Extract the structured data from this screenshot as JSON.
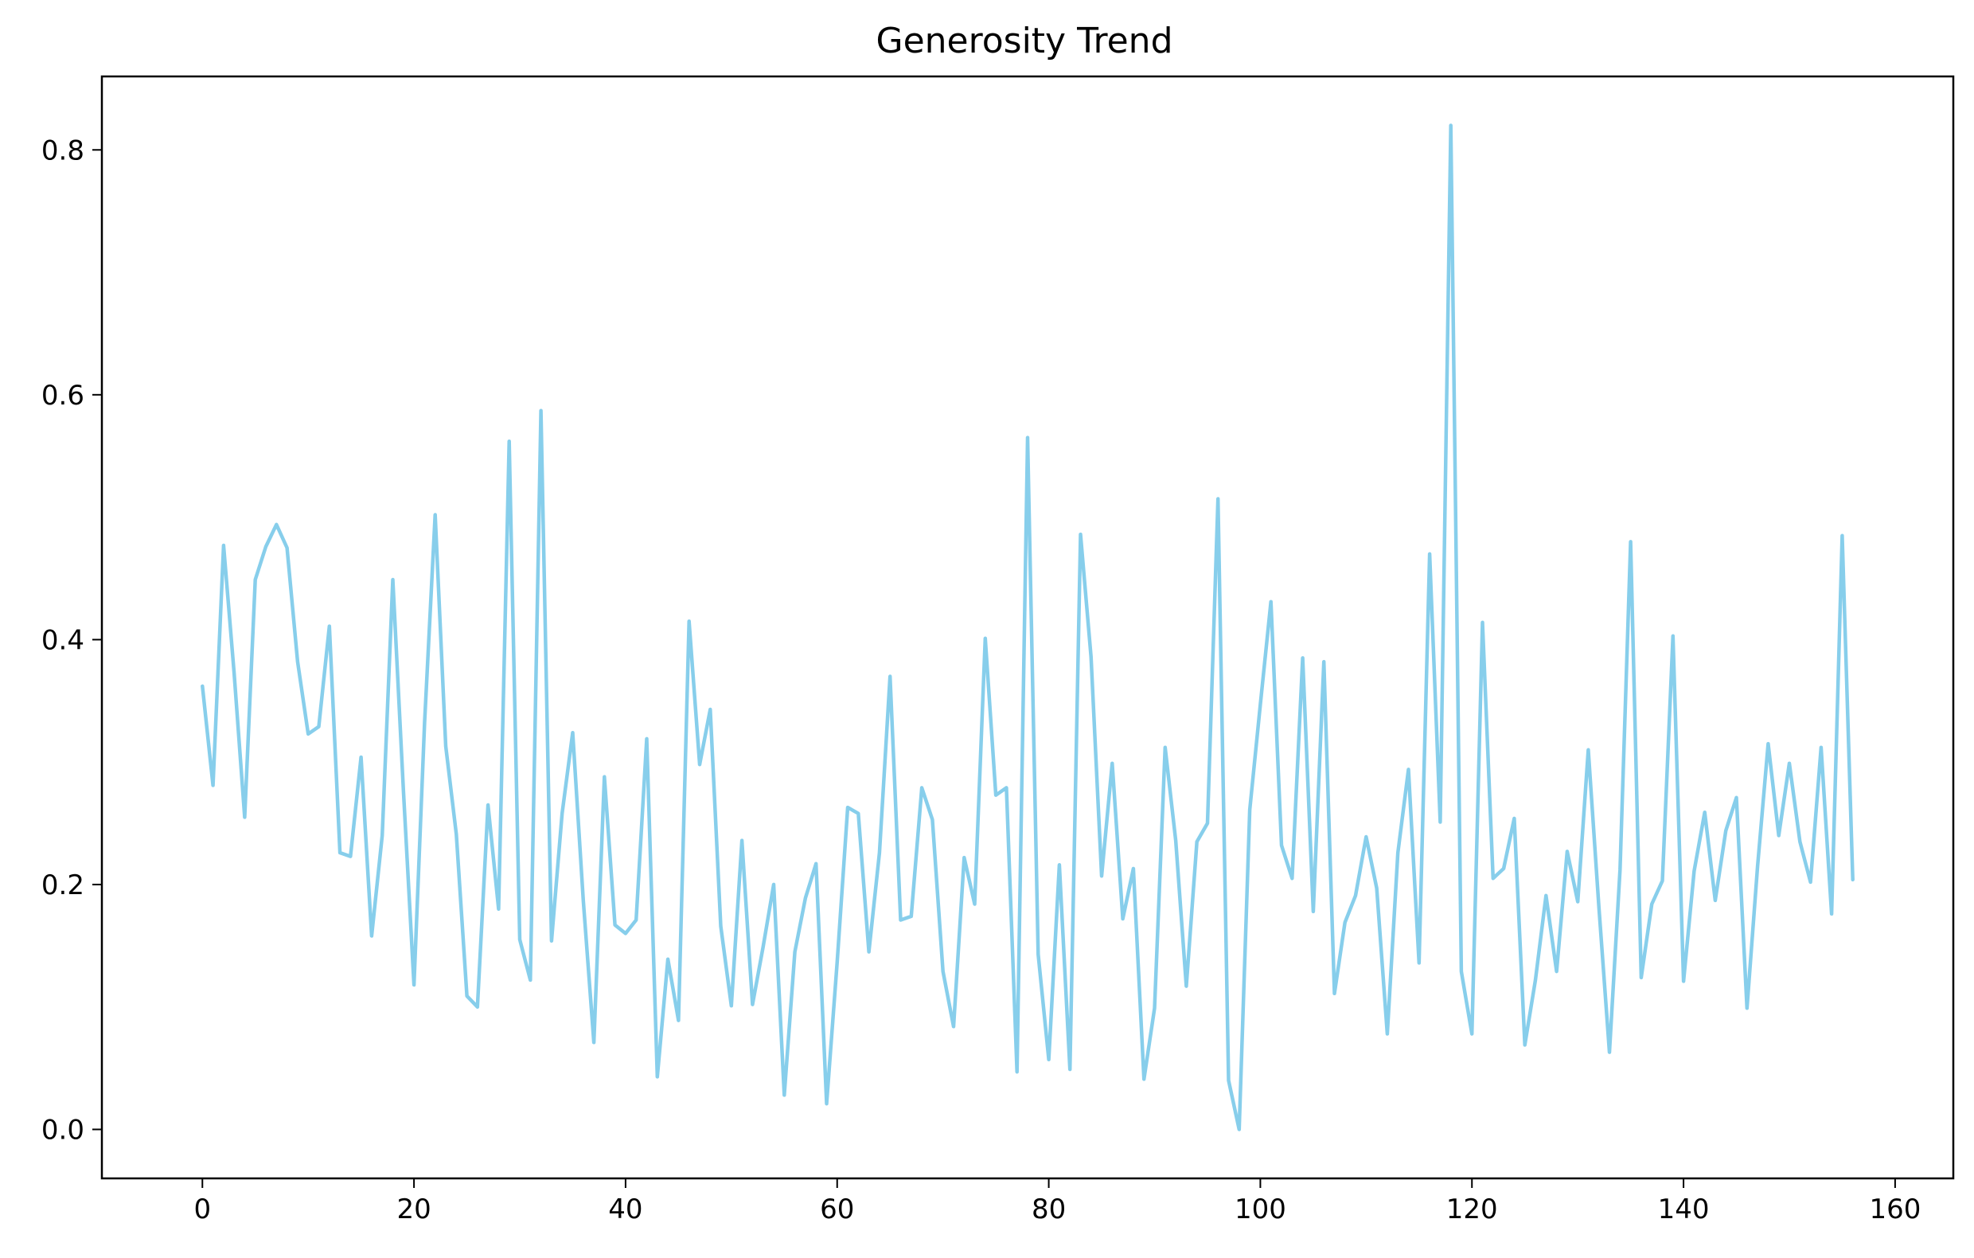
{
  "chart_data": {
    "type": "line",
    "title": "Generosity Trend",
    "xlabel": "",
    "ylabel": "",
    "xlim": [
      -9.5,
      165.5
    ],
    "ylim": [
      -0.04,
      0.86
    ],
    "x_ticks": [
      0,
      20,
      40,
      60,
      80,
      100,
      120,
      140,
      160
    ],
    "y_ticks": [
      0.0,
      0.2,
      0.4,
      0.6,
      0.8
    ],
    "x_tick_labels": [
      "0",
      "20",
      "40",
      "60",
      "80",
      "100",
      "120",
      "140",
      "160"
    ],
    "y_tick_labels": [
      "0.0",
      "0.2",
      "0.4",
      "0.6",
      "0.8"
    ],
    "grid": false,
    "legend": "none",
    "color": "#87CEEB",
    "series": [
      {
        "values": [
          0.362,
          0.281,
          0.477,
          0.373,
          0.255,
          0.449,
          0.476,
          0.494,
          0.475,
          0.382,
          0.323,
          0.329,
          0.411,
          0.226,
          0.223,
          0.304,
          0.158,
          0.24,
          0.449,
          0.277,
          0.118,
          0.332,
          0.502,
          0.313,
          0.241,
          0.109,
          0.1,
          0.265,
          0.18,
          0.562,
          0.155,
          0.122,
          0.587,
          0.154,
          0.258,
          0.324,
          0.187,
          0.071,
          0.288,
          0.167,
          0.16,
          0.171,
          0.319,
          0.043,
          0.139,
          0.089,
          0.415,
          0.298,
          0.343,
          0.166,
          0.101,
          0.236,
          0.102,
          0.149,
          0.2,
          0.028,
          0.145,
          0.189,
          0.217,
          0.021,
          0.137,
          0.263,
          0.258,
          0.145,
          0.226,
          0.37,
          0.171,
          0.174,
          0.279,
          0.253,
          0.129,
          0.084,
          0.222,
          0.184,
          0.401,
          0.273,
          0.279,
          0.047,
          0.565,
          0.143,
          0.057,
          0.216,
          0.049,
          0.486,
          0.386,
          0.207,
          0.299,
          0.172,
          0.213,
          0.041,
          0.099,
          0.312,
          0.236,
          0.117,
          0.235,
          0.25,
          0.515,
          0.04,
          0.0,
          0.261,
          0.347,
          0.431,
          0.232,
          0.205,
          0.385,
          0.178,
          0.382,
          0.111,
          0.169,
          0.191,
          0.239,
          0.197,
          0.078,
          0.226,
          0.294,
          0.136,
          0.47,
          0.251,
          0.82,
          0.129,
          0.078,
          0.414,
          0.205,
          0.213,
          0.254,
          0.069,
          0.122,
          0.191,
          0.129,
          0.227,
          0.186,
          0.31,
          0.182,
          0.063,
          0.212,
          0.48,
          0.124,
          0.184,
          0.203,
          0.403,
          0.121,
          0.211,
          0.259,
          0.187,
          0.244,
          0.271,
          0.099,
          0.215,
          0.315,
          0.24,
          0.299,
          0.235,
          0.202,
          0.312,
          0.176,
          0.485,
          0.204
        ]
      }
    ]
  }
}
